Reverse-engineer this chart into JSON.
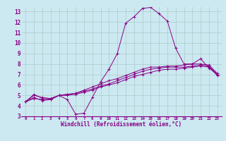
{
  "xlabel": "Windchill (Refroidissement éolien,°C)",
  "bg_color": "#cce8f0",
  "line_color": "#880088",
  "xlim": [
    -0.5,
    23.5
  ],
  "ylim": [
    3,
    13.5
  ],
  "xticks": [
    0,
    1,
    2,
    3,
    4,
    5,
    6,
    7,
    8,
    9,
    10,
    11,
    12,
    13,
    14,
    15,
    16,
    17,
    18,
    19,
    20,
    21,
    22,
    23
  ],
  "yticks": [
    3,
    4,
    5,
    6,
    7,
    8,
    9,
    10,
    11,
    12,
    13
  ],
  "series": [
    [
      4.4,
      5.1,
      4.7,
      4.6,
      5.0,
      4.6,
      3.2,
      3.3,
      4.8,
      6.3,
      7.5,
      9.0,
      11.9,
      12.5,
      13.3,
      13.4,
      12.8,
      12.1,
      9.5,
      8.0,
      8.0,
      8.5,
      7.6,
      7.0
    ],
    [
      4.4,
      4.8,
      4.5,
      4.6,
      5.0,
      5.0,
      5.1,
      5.3,
      5.5,
      5.8,
      6.0,
      6.2,
      6.5,
      6.8,
      7.0,
      7.2,
      7.4,
      7.5,
      7.5,
      7.6,
      7.7,
      7.8,
      7.7,
      6.9
    ],
    [
      4.4,
      4.7,
      4.6,
      4.7,
      5.0,
      5.1,
      5.2,
      5.4,
      5.6,
      5.9,
      6.1,
      6.4,
      6.7,
      7.0,
      7.3,
      7.5,
      7.6,
      7.7,
      7.7,
      7.7,
      7.8,
      7.9,
      7.8,
      7.0
    ],
    [
      4.4,
      5.0,
      4.8,
      4.7,
      5.0,
      5.1,
      5.2,
      5.5,
      5.8,
      6.1,
      6.4,
      6.6,
      6.9,
      7.2,
      7.5,
      7.7,
      7.7,
      7.8,
      7.8,
      7.9,
      8.0,
      8.0,
      7.9,
      7.1
    ]
  ],
  "label_fontsize": 5.5,
  "xlabel_fontsize": 5.5
}
